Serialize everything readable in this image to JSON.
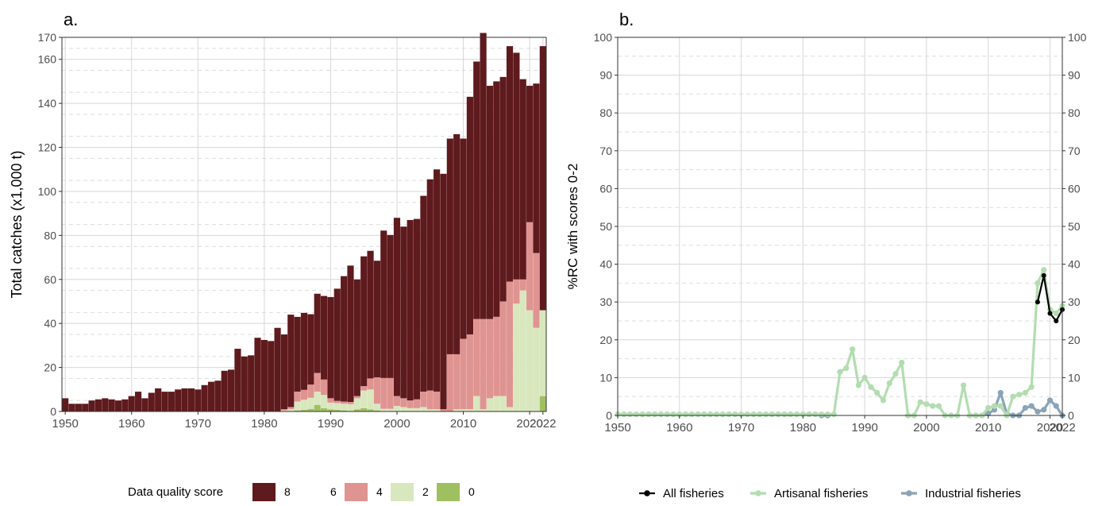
{
  "chart_data": [
    {
      "panel_label": "a.",
      "type": "bar",
      "stacked": true,
      "ylabel": "Total catches (x1,000 t)",
      "xlim": [
        1950,
        2022
      ],
      "ylim": [
        0,
        170
      ],
      "x_ticks": [
        "1950",
        "1960",
        "1970",
        "1980",
        "1990",
        "2000",
        "2010",
        "2020",
        "2022"
      ],
      "y_ticks": [
        "0",
        "20",
        "40",
        "60",
        "80",
        "100",
        "120",
        "140",
        "160",
        "170"
      ],
      "legend": {
        "title": "Data quality score",
        "position": "bottom",
        "items": [
          {
            "label": "8",
            "color": "#5e1a1d"
          },
          {
            "label": "6",
            "color": "#ffffff"
          },
          {
            "label": "4",
            "color": "#df9491"
          },
          {
            "label": "2",
            "color": "#d9e7be"
          },
          {
            "label": "0",
            "color": "#9fc061"
          }
        ]
      },
      "years": [
        1950,
        1951,
        1952,
        1953,
        1954,
        1955,
        1956,
        1957,
        1958,
        1959,
        1960,
        1961,
        1962,
        1963,
        1964,
        1965,
        1966,
        1967,
        1968,
        1969,
        1970,
        1971,
        1972,
        1973,
        1974,
        1975,
        1976,
        1977,
        1978,
        1979,
        1980,
        1981,
        1982,
        1983,
        1984,
        1985,
        1986,
        1987,
        1988,
        1989,
        1990,
        1991,
        1992,
        1993,
        1994,
        1995,
        1996,
        1997,
        1998,
        1999,
        2000,
        2001,
        2002,
        2003,
        2004,
        2005,
        2006,
        2007,
        2008,
        2009,
        2010,
        2011,
        2012,
        2013,
        2014,
        2015,
        2016,
        2017,
        2018,
        2019,
        2020,
        2021,
        2022
      ],
      "series": [
        {
          "name": "0",
          "color": "#9fc061",
          "values": [
            0,
            0,
            0,
            0,
            0,
            0,
            0,
            0,
            0,
            0,
            0,
            0,
            0,
            0,
            0,
            0,
            0,
            0,
            0,
            0,
            0,
            0,
            0,
            0,
            0,
            0,
            0,
            0,
            0,
            0,
            0,
            0,
            0,
            0,
            0,
            0.5,
            0.8,
            1.2,
            3,
            1.5,
            1,
            0.8,
            0.5,
            0.3,
            1,
            1.5,
            1,
            0.5,
            0.2,
            0.2,
            0,
            0,
            0,
            0,
            0,
            0,
            0,
            0,
            0,
            0,
            0,
            0,
            0,
            0,
            0,
            0,
            0,
            0,
            0,
            0,
            0,
            0,
            7
          ]
        },
        {
          "name": "2",
          "color": "#d9e7be",
          "values": [
            0,
            0,
            0,
            0,
            0,
            0,
            0,
            0,
            0,
            0,
            0,
            0,
            0,
            0,
            0,
            0,
            0,
            0,
            0,
            0,
            0,
            0,
            0,
            0,
            0,
            0,
            0,
            0,
            0,
            0,
            0,
            0,
            0,
            0.5,
            1,
            4,
            4.5,
            5,
            6,
            6,
            3,
            3,
            3,
            3,
            5,
            8,
            9,
            3,
            1,
            1,
            2.5,
            2,
            1.5,
            1.5,
            2,
            1,
            1,
            0,
            0,
            1,
            1,
            1,
            7,
            1,
            6,
            7,
            7,
            2,
            49,
            55,
            46,
            38,
            39
          ]
        },
        {
          "name": "4",
          "color": "#df9491",
          "values": [
            0,
            0,
            0,
            0,
            0,
            0,
            0,
            0,
            0,
            0,
            0,
            0,
            0,
            0,
            0,
            0,
            0,
            0,
            0,
            0,
            0,
            0,
            0,
            0,
            0,
            0,
            0,
            0,
            0,
            0,
            0,
            0,
            0,
            0.5,
            1,
            4.5,
            4.5,
            6,
            8.5,
            7,
            2,
            1,
            1,
            1,
            1,
            2,
            5,
            12,
            14,
            14,
            4.5,
            4,
            3.5,
            4,
            7,
            8.5,
            8,
            1,
            26,
            25,
            32,
            34,
            35,
            41,
            36,
            36,
            43,
            57,
            11,
            5,
            40,
            34,
            0
          ]
        },
        {
          "name": "8",
          "color": "#5e1a1d",
          "values": [
            6,
            3.5,
            3.5,
            3.5,
            5,
            5.5,
            6,
            5.5,
            5,
            5.5,
            7,
            9,
            6,
            8.5,
            10.5,
            9,
            9,
            10,
            10.5,
            10.5,
            10,
            12,
            13.5,
            14,
            18.5,
            19,
            28.5,
            25,
            25.5,
            33.5,
            32.5,
            32,
            38,
            34,
            42,
            34,
            35,
            32,
            36,
            38,
            46,
            51,
            57,
            62,
            53,
            59,
            58,
            53,
            67,
            65,
            81,
            78,
            82,
            82,
            89,
            96,
            101,
            107,
            98,
            100,
            91,
            108,
            117,
            130,
            106,
            107,
            102,
            107,
            103,
            91,
            62,
            77,
            120
          ]
        }
      ]
    },
    {
      "panel_label": "b.",
      "type": "line",
      "ylabel": "%RC with scores 0-2",
      "xlim": [
        1950,
        2022
      ],
      "ylim": [
        0,
        100
      ],
      "x_ticks": [
        "1950",
        "1960",
        "1970",
        "1980",
        "1990",
        "2000",
        "2010",
        "2020",
        "2022"
      ],
      "y_ticks": [
        "0",
        "10",
        "20",
        "30",
        "40",
        "50",
        "60",
        "70",
        "80",
        "90",
        "100"
      ],
      "legend": {
        "position": "bottom"
      },
      "series": [
        {
          "name": "All fisheries",
          "color": "#000000",
          "points": [
            [
              2018,
              30
            ],
            [
              2019,
              37
            ],
            [
              2020,
              27
            ],
            [
              2021,
              25
            ],
            [
              2022,
              28
            ]
          ]
        },
        {
          "name": "Artisanal fisheries",
          "color": "#b3ddb0",
          "points": [
            [
              1950,
              0.3
            ],
            [
              1951,
              0.3
            ],
            [
              1952,
              0.3
            ],
            [
              1953,
              0.3
            ],
            [
              1954,
              0.3
            ],
            [
              1955,
              0.3
            ],
            [
              1956,
              0.3
            ],
            [
              1957,
              0.3
            ],
            [
              1958,
              0.3
            ],
            [
              1959,
              0.3
            ],
            [
              1960,
              0.3
            ],
            [
              1961,
              0.3
            ],
            [
              1962,
              0.3
            ],
            [
              1963,
              0.3
            ],
            [
              1964,
              0.3
            ],
            [
              1965,
              0.3
            ],
            [
              1966,
              0.3
            ],
            [
              1967,
              0.3
            ],
            [
              1968,
              0.3
            ],
            [
              1969,
              0.3
            ],
            [
              1970,
              0.3
            ],
            [
              1971,
              0.3
            ],
            [
              1972,
              0.3
            ],
            [
              1973,
              0.3
            ],
            [
              1974,
              0.3
            ],
            [
              1975,
              0.3
            ],
            [
              1976,
              0.3
            ],
            [
              1977,
              0.3
            ],
            [
              1978,
              0.3
            ],
            [
              1979,
              0.3
            ],
            [
              1980,
              0.3
            ],
            [
              1981,
              0.3
            ],
            [
              1982,
              0.3
            ],
            [
              1983,
              0.3
            ],
            [
              1984,
              0.3
            ],
            [
              1985,
              0.3
            ],
            [
              1986,
              11.5
            ],
            [
              1987,
              12.5
            ],
            [
              1988,
              17.5
            ],
            [
              1989,
              8
            ],
            [
              1990,
              10
            ],
            [
              1991,
              7.5
            ],
            [
              1992,
              6
            ],
            [
              1993,
              4
            ],
            [
              1994,
              8.5
            ],
            [
              1995,
              11
            ],
            [
              1996,
              14
            ],
            [
              1997,
              0
            ],
            [
              1998,
              0
            ],
            [
              1999,
              3.5
            ],
            [
              2000,
              3
            ],
            [
              2001,
              2.5
            ],
            [
              2002,
              2.5
            ],
            [
              2003,
              0
            ],
            [
              2004,
              0
            ],
            [
              2005,
              0
            ],
            [
              2006,
              8
            ],
            [
              2007,
              0
            ],
            [
              2008,
              0
            ],
            [
              2009,
              0
            ],
            [
              2010,
              2
            ],
            [
              2011,
              2.5
            ],
            [
              2012,
              2.5
            ],
            [
              2013,
              0
            ],
            [
              2014,
              5
            ],
            [
              2015,
              5.5
            ],
            [
              2016,
              6
            ],
            [
              2017,
              7.5
            ],
            [
              2018,
              35
            ],
            [
              2019,
              38.5
            ],
            [
              2020,
              28
            ],
            [
              2021,
              27
            ],
            [
              2022,
              29
            ]
          ]
        },
        {
          "name": "Industrial fisheries",
          "color": "#8aa3b7",
          "points": [
            [
              1983,
              0
            ],
            [
              1984,
              0
            ],
            [
              1997,
              0
            ],
            [
              2007,
              0
            ],
            [
              2008,
              0
            ],
            [
              2009,
              0
            ],
            [
              2010,
              0.5
            ],
            [
              2011,
              1.5
            ],
            [
              2012,
              6
            ],
            [
              2013,
              0.5
            ],
            [
              2014,
              0
            ],
            [
              2015,
              0
            ],
            [
              2016,
              2
            ],
            [
              2017,
              2.5
            ],
            [
              2018,
              1
            ],
            [
              2019,
              1.5
            ],
            [
              2020,
              4
            ],
            [
              2021,
              2.5
            ],
            [
              2022,
              0
            ]
          ]
        }
      ]
    }
  ]
}
